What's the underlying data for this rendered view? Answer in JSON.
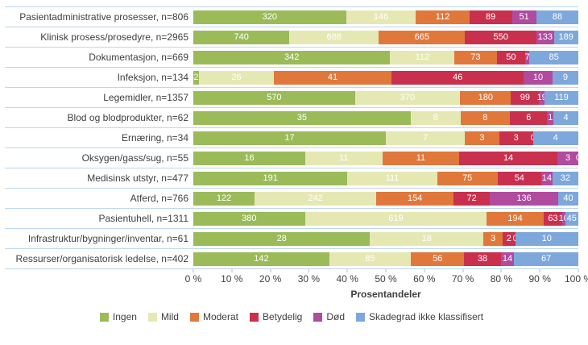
{
  "chart_data": {
    "type": "bar",
    "variant": "horizontal-100pct-stacked",
    "title": "",
    "xlabel": "Prosentandeler",
    "ylabel": "",
    "xlim": [
      0,
      100
    ],
    "x_ticks": [
      "0 %",
      "10 %",
      "20 %",
      "30 %",
      "40 %",
      "50 %",
      "60 %",
      "70 %",
      "80 %",
      "90 %",
      "100 %"
    ],
    "grid": "horizontal-row-separators",
    "legend_position": "bottom",
    "categories": [
      "Pasientadministrative prosesser, n=806",
      "Klinisk prosess/prosedyre, n=2965",
      "Dokumentasjon, n=669",
      "Infeksjon, n=134",
      "Legemidler, n=1357",
      "Blod og blodprodukter, n=62",
      "Ernæring, n=34",
      "Oksygen/gass/sug, n=55",
      "Medisinsk utstyr, n=477",
      "Atferd, n=766",
      "Pasientuhell, n=1311",
      "Infrastruktur/bygninger/inventar, n=61",
      "Ressurser/organisatorisk ledelse, n=402"
    ],
    "totals": [
      806,
      2965,
      669,
      134,
      1357,
      62,
      34,
      55,
      477,
      766,
      1311,
      61,
      402
    ],
    "series": [
      {
        "name": "Ingen",
        "color": "#9BBB59",
        "values": [
          320,
          740,
          342,
          2,
          570,
          35,
          17,
          16,
          191,
          122,
          380,
          28,
          142
        ]
      },
      {
        "name": "Mild",
        "color": "#E6E8B4",
        "values": [
          146,
          688,
          112,
          26,
          370,
          8,
          7,
          11,
          111,
          242,
          619,
          18,
          85
        ]
      },
      {
        "name": "Moderat",
        "color": "#E0783C",
        "values": [
          112,
          665,
          73,
          41,
          180,
          8,
          3,
          11,
          75,
          154,
          194,
          3,
          56
        ]
      },
      {
        "name": "Betydelig",
        "color": "#C8304E",
        "values": [
          89,
          550,
          50,
          46,
          99,
          6,
          3,
          14,
          54,
          72,
          63,
          2,
          38
        ]
      },
      {
        "name": "Død",
        "color": "#B04B9E",
        "values": [
          51,
          133,
          7,
          10,
          19,
          1,
          0,
          3,
          14,
          136,
          10,
          0,
          14
        ]
      },
      {
        "name": "Skadegrad ikke klassifisert",
        "color": "#7EA7DC",
        "values": [
          88,
          189,
          85,
          9,
          119,
          4,
          4,
          0,
          32,
          40,
          45,
          10,
          67
        ]
      }
    ]
  }
}
